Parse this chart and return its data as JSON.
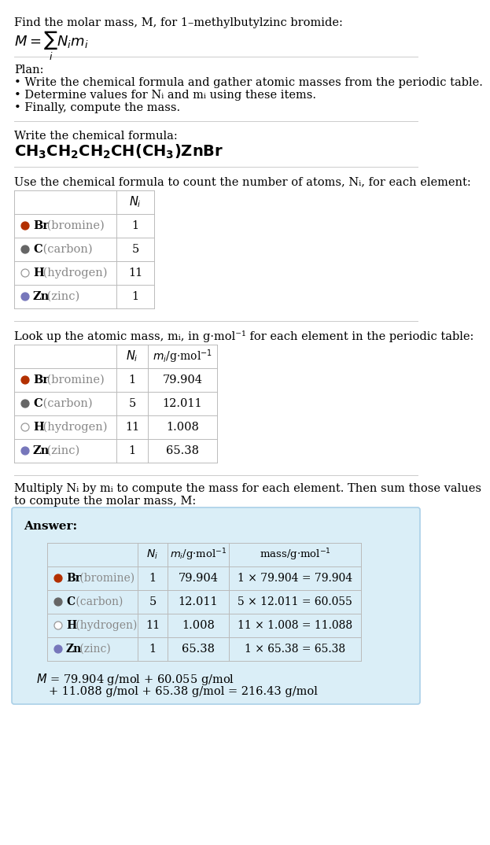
{
  "title_text": "Find the molar mass, M, for 1–methylbutylzinc bromide:",
  "plan_header": "Plan:",
  "plan_bullets": [
    "• Write the chemical formula and gather atomic masses from the periodic table.",
    "• Determine values for Nᵢ and mᵢ using these items.",
    "• Finally, compute the mass."
  ],
  "step1_header": "Write the chemical formula:",
  "step2_header": "Use the chemical formula to count the number of atoms, Nᵢ, for each element:",
  "step3_header": "Look up the atomic mass, mᵢ, in g·mol⁻¹ for each element in the periodic table:",
  "step4_header": "Multiply Nᵢ by mᵢ to compute the mass for each element. Then sum those values\nto compute the molar mass, M:",
  "elements": [
    "Br (bromine)",
    "C (carbon)",
    "H (hydrogen)",
    "Zn (zinc)"
  ],
  "element_symbols": [
    "Br",
    "C",
    "H",
    "Zn"
  ],
  "element_names": [
    "(bromine)",
    "(carbon)",
    "(hydrogen)",
    "(zinc)"
  ],
  "Ni": [
    1,
    5,
    11,
    1
  ],
  "mi_str": [
    "79.904",
    "12.011",
    "1.008",
    "65.38"
  ],
  "mass_str": [
    "1 × 79.904 = 79.904",
    "5 × 12.011 = 60.055",
    "11 × 1.008 = 11.088",
    "1 × 65.38 = 65.38"
  ],
  "dot_colors": [
    "#b33000",
    "#666666",
    "#ffffff",
    "#7777bb"
  ],
  "dot_border_colors": [
    "#b33000",
    "#666666",
    "#999999",
    "#7777bb"
  ],
  "bg_color": "#ffffff",
  "answer_bg": "#daeef7",
  "line_color": "#cccccc",
  "table_line_color": "#bbbbbb"
}
